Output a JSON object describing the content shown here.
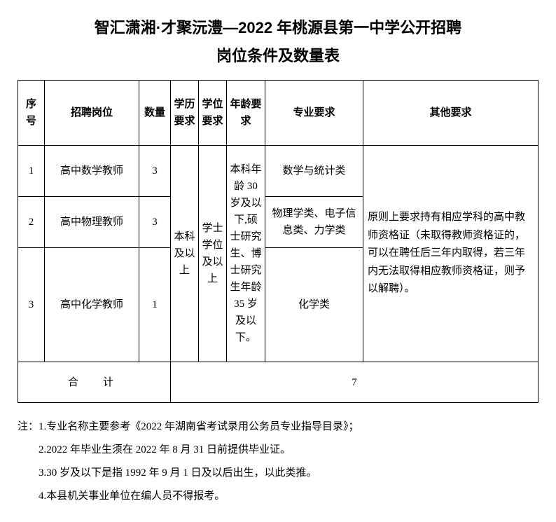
{
  "title_line1": "智汇潇湘·才聚沅澧—2022 年桃源县第一中学公开招聘",
  "title_line2": "岗位条件及数量表",
  "headers": {
    "seq": "序号",
    "position": "招聘岗位",
    "qty": "数量",
    "edu": "学历要求",
    "degree": "学位要求",
    "age": "年龄要求",
    "major": "专业要求",
    "other": "其他要求"
  },
  "rows": [
    {
      "seq": "1",
      "position": "高中数学教师",
      "qty": "3",
      "major": "数学与统计类"
    },
    {
      "seq": "2",
      "position": "高中物理教师",
      "qty": "3",
      "major": "物理学类、电子信息类、力学类"
    },
    {
      "seq": "3",
      "position": "高中化学教师",
      "qty": "1",
      "major": "化学类"
    }
  ],
  "edu_req": "本科及以上",
  "degree_req": "学士学位及以上",
  "age_req": "本科年龄 30 岁及以下,硕士研究生、博士研究生年龄 35 岁及以下。",
  "other_req": "原则上要求持有相应学科的高中教师资格证（未取得教师资格证的，可以在聘任后三年内取得，若三年内无法取得相应教师资格证，则予以解聘）。",
  "total_label": "合　计",
  "total_value": "7",
  "notes_prefix": "注：",
  "notes": {
    "n1": "1.专业名称主要参考《2022 年湖南省考试录用公务员专业指导目录》；",
    "n2": "2.2022 年毕业生须在 2022 年 8 月 31 日前提供毕业证。",
    "n3": "3.30 岁及以下是指 1992 年 9 月 1 日及以后出生，以此类推。",
    "n4": "4.本县机关事业单位在编人员不得报考。"
  }
}
